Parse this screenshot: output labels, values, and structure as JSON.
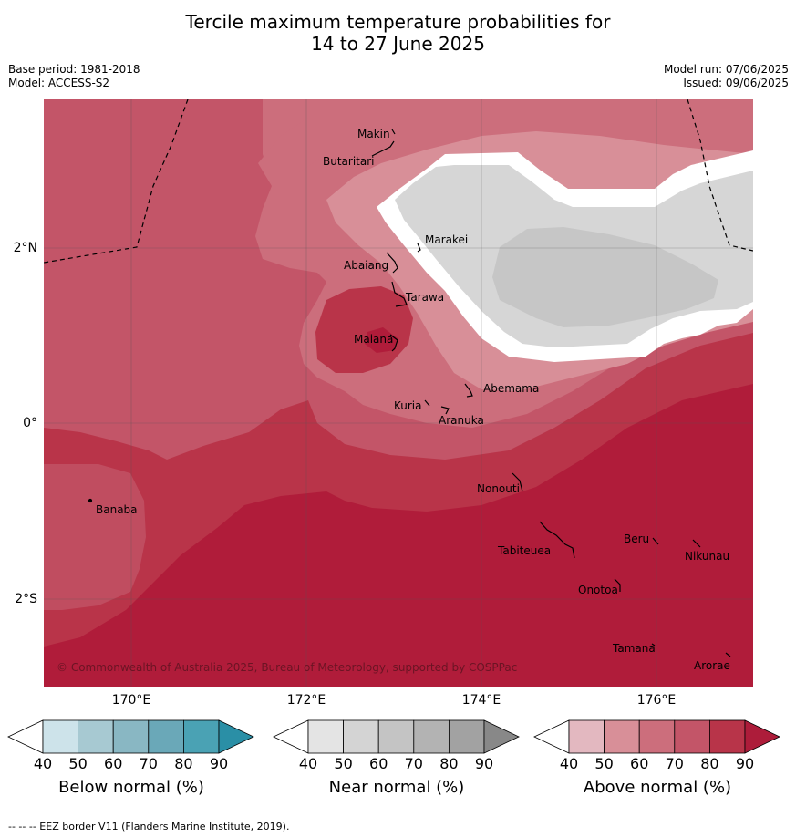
{
  "title_line1": "Tercile maximum temperature probabilities for",
  "title_line2": "14 to 27 June 2025",
  "base_period": "Base period: 1981-2018",
  "model": "Model: ACCESS-S2",
  "model_run": "Model run: 07/06/2025",
  "issued": "Issued: 09/06/2025",
  "copyright": "© Commonwealth of Australia 2025, Bureau of Meteorology, supported by COSPPac",
  "footnote": "--  --  -- EEZ border V11 (Flanders Marine Institute, 2019).",
  "longitude_labels": [
    "170°E",
    "172°E",
    "174°E",
    "176°E"
  ],
  "latitude_labels": [
    "2°N",
    "0°",
    "2°S"
  ],
  "places": [
    "Makin",
    "Butaritari",
    "Marakei",
    "Abaiang",
    "Tarawa",
    "Maiana",
    "Abemama",
    "Kuria",
    "Aranuka",
    "Banaba",
    "Nonouti",
    "Tabiteuea",
    "Beru",
    "Nikunau",
    "Onotoa",
    "Tamana",
    "Arorae"
  ],
  "colorbars": [
    {
      "title": "Below normal (%)",
      "ticks": [
        "40",
        "50",
        "60",
        "70",
        "80",
        "90"
      ],
      "colors": [
        "#cde3ea",
        "#a7c9d2",
        "#89b7c3",
        "#6aa8b8",
        "#4aa2b4",
        "#2a8fa6"
      ]
    },
    {
      "title": "Near normal (%)",
      "ticks": [
        "40",
        "50",
        "60",
        "70",
        "80",
        "90"
      ],
      "colors": [
        "#e4e4e4",
        "#d4d4d4",
        "#c4c4c4",
        "#b3b3b3",
        "#a2a2a2",
        "#888888"
      ]
    },
    {
      "title": "Above normal (%)",
      "ticks": [
        "40",
        "50",
        "60",
        "70",
        "80",
        "90"
      ],
      "colors": [
        "#e3b8c0",
        "#d88f98",
        "#cc6e7c",
        "#c35568",
        "#b83449",
        "#ad1c3a"
      ]
    }
  ],
  "map_colors": {
    "above_90": "#b01c3a",
    "above_80": "#b93449",
    "above_70": "#c35568",
    "above_60": "#cc6e7c",
    "above_50": "#d88f98",
    "near_50": "#d6d6d6",
    "near_60": "#c6c6c6"
  }
}
